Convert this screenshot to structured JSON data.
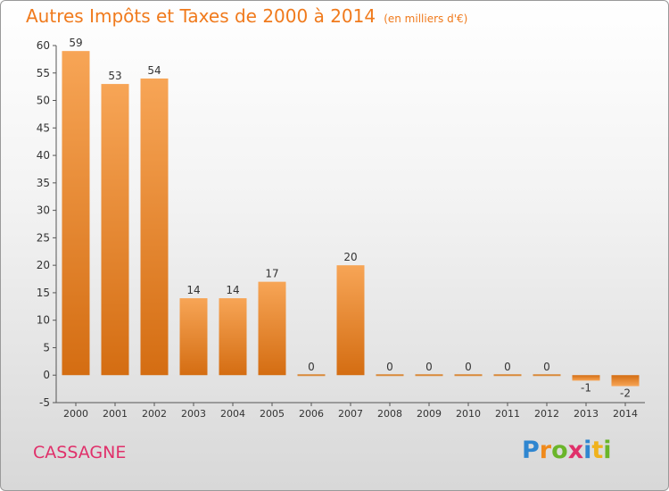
{
  "chart_data": {
    "type": "bar",
    "title": "Autres Impôts et Taxes de 2000 à 2014",
    "unit_note": "(en milliers d'€)",
    "categories": [
      "2000",
      "2001",
      "2002",
      "2003",
      "2004",
      "2005",
      "2006",
      "2007",
      "2008",
      "2009",
      "2010",
      "2011",
      "2012",
      "2013",
      "2014"
    ],
    "values": [
      59,
      53,
      54,
      14,
      14,
      17,
      0,
      20,
      0,
      0,
      0,
      0,
      0,
      -1,
      -2
    ],
    "value_labels": [
      "59",
      "53",
      "54",
      "14",
      "14",
      "17",
      "0",
      "20",
      "0",
      "0",
      "0",
      "0",
      "0",
      "-1",
      "-2"
    ],
    "y_ticks": [
      -5,
      0,
      5,
      10,
      15,
      20,
      25,
      30,
      35,
      40,
      45,
      50,
      55,
      60
    ],
    "ylim": [
      -5,
      60
    ],
    "grid": false,
    "colors": {
      "bar_light": "#f7a556",
      "bar_dark": "#d46d12",
      "text": "#333333",
      "axis": "#555555"
    }
  },
  "location": "CASSAGNE",
  "brand": {
    "letters": [
      "P",
      "r",
      "o",
      "x",
      "i",
      "t",
      "i"
    ]
  }
}
